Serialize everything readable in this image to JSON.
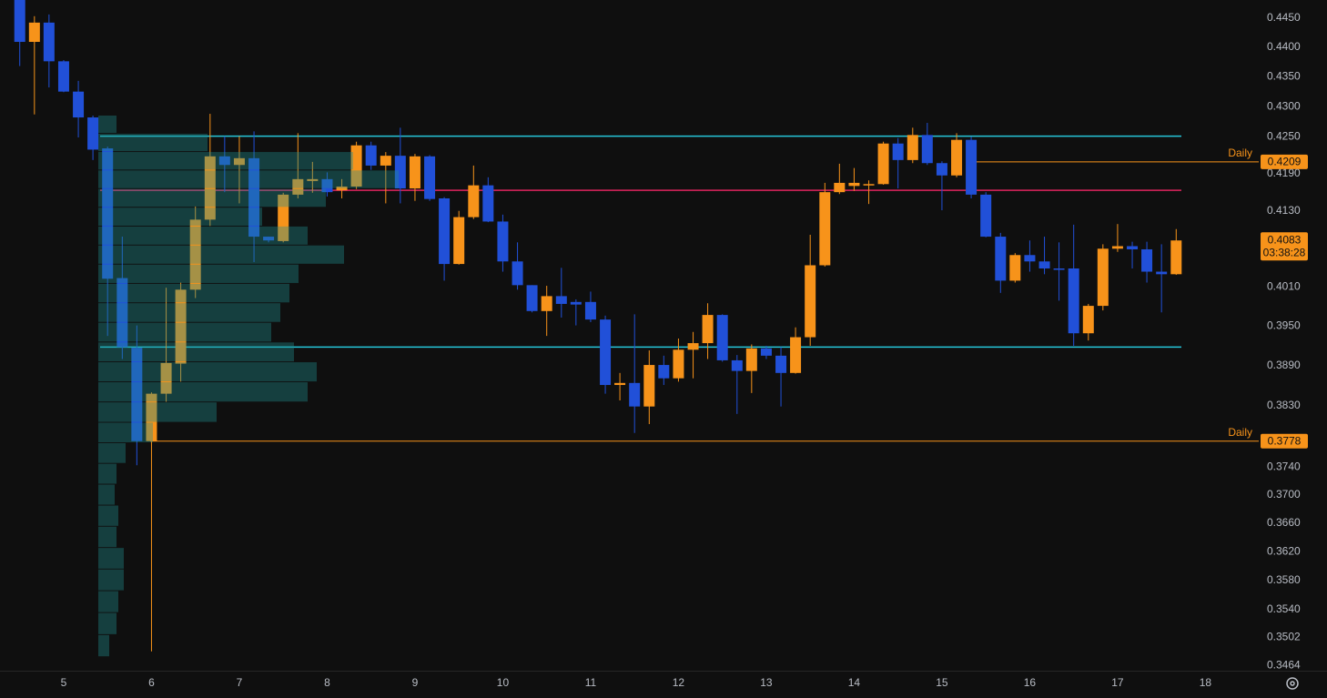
{
  "chart_data": {
    "type": "candlestick",
    "up_color": "#f7931a",
    "down_color": "#2150d8",
    "log_scale": true,
    "x": [
      4.5,
      4.667,
      4.833,
      5,
      5.167,
      5.333,
      5.5,
      5.667,
      5.833,
      6,
      6.167,
      6.333,
      6.5,
      6.667,
      6.833,
      7,
      7.167,
      7.333,
      7.5,
      7.667,
      7.833,
      8,
      8.167,
      8.333,
      8.5,
      8.667,
      8.833,
      9,
      9.167,
      9.333,
      9.5,
      9.667,
      9.833,
      10,
      10.167,
      10.333,
      10.5,
      10.667,
      10.833,
      11,
      11.167,
      11.333,
      11.5,
      11.667,
      11.833,
      12,
      12.167,
      12.333,
      12.5,
      12.667,
      12.833,
      13,
      13.167,
      13.333,
      13.5,
      13.667,
      13.833,
      14,
      14.167,
      14.333,
      14.5,
      14.667,
      14.833,
      15,
      15.167,
      15.333,
      15.5,
      15.667,
      15.833,
      16,
      16.167,
      16.333,
      16.5,
      16.667,
      16.833,
      17,
      17.167,
      17.333,
      17.5,
      17.667
    ],
    "open": [
      0.4481,
      0.4409,
      0.4442,
      0.4376,
      0.4325,
      0.4282,
      0.4231,
      0.4024,
      0.3917,
      0.3778,
      0.3848,
      0.3893,
      0.4006,
      0.4116,
      0.4218,
      0.4204,
      0.4215,
      0.4089,
      0.4082,
      0.4156,
      0.4178,
      0.4181,
      0.4163,
      0.4169,
      0.4236,
      0.4203,
      0.4219,
      0.4166,
      0.4218,
      0.415,
      0.4046,
      0.412,
      0.4171,
      0.4113,
      0.405,
      0.4013,
      0.3973,
      0.3996,
      0.3987,
      0.3987,
      0.396,
      0.3861,
      0.3864,
      0.3829,
      0.3891,
      0.3871,
      0.3914,
      0.3924,
      0.3967,
      0.3898,
      0.3882,
      0.3916,
      0.3905,
      0.3879,
      0.3933,
      0.4044,
      0.416,
      0.417,
      0.4171,
      0.4173,
      0.4239,
      0.4212,
      0.4253,
      0.4207,
      0.4187,
      0.4245,
      0.4156,
      0.4089,
      0.402,
      0.406,
      0.405,
      0.4039,
      0.4039,
      0.3939,
      0.3981,
      0.407,
      0.4074,
      0.4069,
      0.4034,
      0.403
    ],
    "high": [
      0.449,
      0.4453,
      0.4456,
      0.4378,
      0.4343,
      0.4285,
      0.4234,
      0.4089,
      0.3951,
      0.385,
      0.4009,
      0.4017,
      0.4137,
      0.4288,
      0.4251,
      0.4251,
      0.4259,
      0.4089,
      0.4159,
      0.4256,
      0.4209,
      0.4192,
      0.4181,
      0.4242,
      0.4242,
      0.4225,
      0.4265,
      0.4222,
      0.422,
      0.4152,
      0.413,
      0.4203,
      0.4184,
      0.4124,
      0.408,
      0.4013,
      0.4012,
      0.404,
      0.3991,
      0.4003,
      0.3966,
      0.3879,
      0.3968,
      0.3913,
      0.3905,
      0.3931,
      0.3941,
      0.3985,
      0.3968,
      0.3906,
      0.3922,
      0.392,
      0.3918,
      0.3948,
      0.4092,
      0.4175,
      0.4206,
      0.4199,
      0.4179,
      0.4242,
      0.4248,
      0.4265,
      0.4273,
      0.421,
      0.4256,
      0.425,
      0.416,
      0.4095,
      0.4063,
      0.4083,
      0.4089,
      0.408,
      0.4108,
      0.3984,
      0.4077,
      0.4109,
      0.4081,
      0.4081,
      0.4077,
      0.4101
    ],
    "low": [
      0.4368,
      0.4287,
      0.4332,
      0.4324,
      0.4249,
      0.4212,
      0.3935,
      0.39,
      0.3743,
      0.3483,
      0.3836,
      0.3866,
      0.3993,
      0.4106,
      0.416,
      0.4142,
      0.4049,
      0.408,
      0.408,
      0.415,
      0.4159,
      0.4153,
      0.415,
      0.4165,
      0.4196,
      0.4142,
      0.4142,
      0.4146,
      0.4146,
      0.402,
      0.4045,
      0.4117,
      0.4112,
      0.4034,
      0.4006,
      0.3971,
      0.3935,
      0.3963,
      0.3951,
      0.3956,
      0.3848,
      0.3838,
      0.379,
      0.3803,
      0.3861,
      0.3866,
      0.3871,
      0.39,
      0.3896,
      0.3818,
      0.3849,
      0.39,
      0.3829,
      0.3878,
      0.392,
      0.4042,
      0.4157,
      0.4162,
      0.4141,
      0.4172,
      0.4166,
      0.4207,
      0.4204,
      0.4131,
      0.4184,
      0.415,
      0.4088,
      0.4001,
      0.4017,
      0.4034,
      0.403,
      0.3989,
      0.392,
      0.3928,
      0.3974,
      0.4065,
      0.4039,
      0.4017,
      0.3971,
      0.4029
    ],
    "close": [
      0.4409,
      0.4442,
      0.4376,
      0.4325,
      0.4282,
      0.4229,
      0.4023,
      0.3918,
      0.3778,
      0.3848,
      0.3894,
      0.4006,
      0.4116,
      0.4218,
      0.4204,
      0.4215,
      0.4089,
      0.4083,
      0.4156,
      0.4181,
      0.4181,
      0.416,
      0.4169,
      0.4236,
      0.4203,
      0.4219,
      0.4166,
      0.4218,
      0.4149,
      0.4046,
      0.412,
      0.4171,
      0.4113,
      0.405,
      0.4013,
      0.3973,
      0.3996,
      0.3984,
      0.3983,
      0.396,
      0.3861,
      0.3864,
      0.3829,
      0.3891,
      0.3871,
      0.3914,
      0.3924,
      0.3967,
      0.3898,
      0.3882,
      0.3916,
      0.3905,
      0.3879,
      0.3933,
      0.4044,
      0.416,
      0.4175,
      0.4175,
      0.4173,
      0.4239,
      0.4212,
      0.4253,
      0.4207,
      0.4187,
      0.4245,
      0.4156,
      0.4089,
      0.402,
      0.406,
      0.405,
      0.4039,
      0.4037,
      0.3939,
      0.3981,
      0.407,
      0.4074,
      0.4069,
      0.4034,
      0.403,
      0.4083
    ],
    "xlim": [
      4.275,
      18.607
    ],
    "xticks": [
      5,
      6,
      7,
      8,
      9,
      10,
      11,
      12,
      13,
      14,
      15,
      16,
      17,
      18
    ],
    "ylim": [
      0.3457,
      0.4481
    ],
    "yticks": [
      {
        "value": 0.445,
        "label": "0.4450"
      },
      {
        "value": 0.44,
        "label": "0.4400"
      },
      {
        "value": 0.435,
        "label": "0.4350"
      },
      {
        "value": 0.43,
        "label": "0.4300"
      },
      {
        "value": 0.425,
        "label": "0.4250"
      },
      {
        "value": 0.419,
        "label": "0.4190"
      },
      {
        "value": 0.413,
        "label": "0.4130"
      },
      {
        "value": 0.401,
        "label": "0.4010"
      },
      {
        "value": 0.395,
        "label": "0.3950"
      },
      {
        "value": 0.389,
        "label": "0.3890"
      },
      {
        "value": 0.383,
        "label": "0.3830"
      },
      {
        "value": 0.374,
        "label": "0.3740"
      },
      {
        "value": 0.37,
        "label": "0.3700"
      },
      {
        "value": 0.366,
        "label": "0.3660"
      },
      {
        "value": 0.362,
        "label": "0.3620"
      },
      {
        "value": 0.358,
        "label": "0.3580"
      },
      {
        "value": 0.354,
        "label": "0.3540"
      },
      0.3502,
      0.3464
    ],
    "lines": [
      {
        "value": 0.4251,
        "color": "#26c6da"
      },
      {
        "value": 0.4163,
        "color": "#e0245e"
      },
      {
        "value": 0.3918,
        "color": "#26c6da"
      }
    ],
    "daily_levels": [
      {
        "label": "Daily",
        "value": 0.4209
      },
      {
        "label": "Daily",
        "value": 0.3778
      }
    ],
    "current_price": {
      "value": 0.4083,
      "countdown": "03:38:28"
    },
    "volume_profile": {
      "color": "#1f8f8f",
      "prices": [
        0.427,
        0.424,
        0.421,
        0.418,
        0.415,
        0.412,
        0.409,
        0.406,
        0.403,
        0.4,
        0.397,
        0.394,
        0.391,
        0.388,
        0.385,
        0.382,
        0.379,
        0.376,
        0.373,
        0.37,
        0.367,
        0.364,
        0.361,
        0.358,
        0.355,
        0.352,
        0.349
      ],
      "volumes": [
        20,
        120,
        280,
        330,
        250,
        180,
        230,
        270,
        220,
        210,
        200,
        190,
        215,
        240,
        230,
        130,
        60,
        30,
        20,
        18,
        22,
        20,
        28,
        28,
        22,
        20,
        12
      ]
    }
  }
}
